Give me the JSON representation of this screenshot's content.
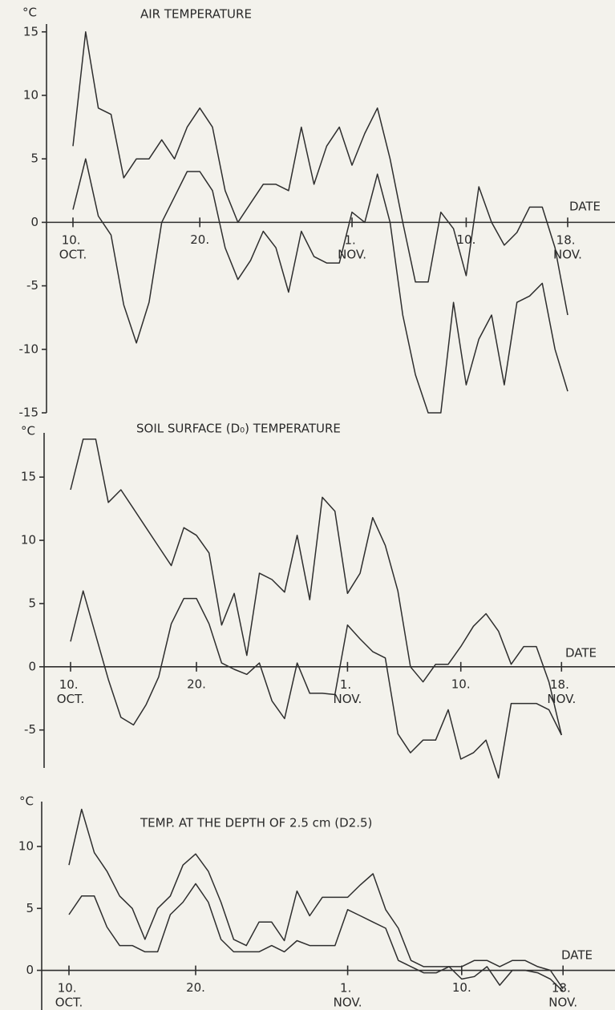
{
  "chart_data": [
    {
      "type": "line",
      "title": "AIR TEMPERATURE",
      "y_label": "°C",
      "x_label": "DATE",
      "categories": [
        "10. OCT.",
        null,
        null,
        null,
        null,
        null,
        null,
        null,
        null,
        null,
        "20.",
        null,
        null,
        null,
        null,
        null,
        null,
        null,
        null,
        null,
        null,
        null,
        "1. NOV.",
        null,
        null,
        null,
        null,
        null,
        null,
        null,
        null,
        "10.",
        null,
        null,
        null,
        null,
        null,
        null,
        null,
        "18. NOV."
      ],
      "series": [
        {
          "color": "#2e2e2e",
          "values": [
            6,
            15,
            9,
            8.5,
            3.5,
            5,
            5,
            6.5,
            5,
            7.5,
            9,
            7.5,
            2.5,
            0,
            1.5,
            3,
            3,
            2.5,
            7.5,
            3,
            6,
            7.5,
            4.5,
            7,
            9,
            5,
            0,
            -4.7,
            -4.7,
            0.8,
            -0.5,
            -4.2,
            2.8,
            0,
            -1.8,
            -0.8,
            1.2,
            1.2,
            -2,
            -7.3
          ]
        },
        {
          "color": "#2e2e2e",
          "values": [
            1,
            5,
            0.5,
            -1,
            -6.5,
            -9.5,
            -6.3,
            0,
            2,
            4,
            4,
            2.5,
            -2,
            -4.5,
            -3,
            -0.7,
            -2,
            -5.5,
            -0.7,
            -2.7,
            -3.2,
            -3.2,
            0.8,
            0,
            3.8,
            0,
            -7.3,
            -12,
            -15,
            -15,
            -6.3,
            -12.8,
            -9.2,
            -7.3,
            -12.8,
            -6.3,
            -5.8,
            -4.8,
            -10,
            -13.3
          ]
        }
      ],
      "ylim": [
        -15,
        15.3
      ],
      "yticks": [
        -15,
        -10,
        -5,
        0,
        5,
        10,
        15
      ]
    },
    {
      "type": "line",
      "title": "SOIL SURFACE (D₀) TEMPERATURE",
      "y_label": "°C",
      "x_label": "DATE",
      "categories": [
        "10. OCT.",
        null,
        null,
        null,
        null,
        null,
        null,
        null,
        null,
        null,
        "20.",
        null,
        null,
        null,
        null,
        null,
        null,
        null,
        null,
        null,
        null,
        null,
        "1. NOV.",
        null,
        null,
        null,
        null,
        null,
        null,
        null,
        null,
        "10.",
        null,
        null,
        null,
        null,
        null,
        null,
        null,
        "18. NOV."
      ],
      "series": [
        {
          "color": "#2e2e2e",
          "values": [
            14,
            18,
            18,
            13,
            14,
            12.5,
            11,
            9.5,
            8,
            11,
            10.4,
            9,
            3.3,
            5.8,
            0.9,
            7.4,
            6.9,
            5.9,
            10.4,
            5.3,
            13.4,
            12.3,
            5.8,
            7.4,
            11.8,
            9.6,
            6,
            0,
            -1.2,
            0.2,
            0.2,
            1.6,
            3.2,
            4.2,
            2.8,
            0.2,
            1.6,
            1.6,
            -1.2,
            -5.4
          ]
        },
        {
          "color": "#2e2e2e",
          "values": [
            2,
            6,
            2.5,
            -1,
            -4,
            -4.6,
            -3,
            -0.8,
            3.4,
            5.4,
            5.4,
            3.4,
            0.3,
            -0.2,
            -0.6,
            0.3,
            -2.7,
            -4.1,
            0.3,
            -2.1,
            -2.1,
            -2.2,
            3.3,
            2.2,
            1.2,
            0.7,
            -5.3,
            -6.8,
            -5.8,
            -5.8,
            -3.4,
            -7.3,
            -6.8,
            -5.8,
            -8.8,
            -2.9,
            -2.9,
            -2.9,
            -3.4,
            -5.4
          ]
        }
      ],
      "ylim": [
        -8,
        18.5
      ],
      "yticks": [
        -5,
        0,
        5,
        10,
        15
      ]
    },
    {
      "type": "line",
      "title": "TEMP. AT THE DEPTH OF 2.5 cm (D2.5)",
      "y_label": "°C",
      "x_label": "DATE",
      "categories": [
        "10. OCT.",
        null,
        null,
        null,
        null,
        null,
        null,
        null,
        null,
        null,
        "20.",
        null,
        null,
        null,
        null,
        null,
        null,
        null,
        null,
        null,
        null,
        null,
        "1. NOV.",
        null,
        null,
        null,
        null,
        null,
        null,
        null,
        null,
        "10.",
        null,
        null,
        null,
        null,
        null,
        null,
        null,
        "18. NOV."
      ],
      "series": [
        {
          "color": "#2e2e2e",
          "values": [
            8.5,
            13,
            9.5,
            8,
            6,
            5,
            2.5,
            5,
            6,
            8.5,
            9.4,
            8,
            5.5,
            2.5,
            2,
            3.9,
            3.9,
            2.4,
            6.4,
            4.4,
            5.9,
            5.9,
            5.9,
            6.9,
            7.8,
            4.9,
            3.4,
            0.8,
            0.3,
            0.3,
            0.3,
            0.3,
            0.8,
            0.8,
            0.3,
            0.8,
            0.8,
            0.3,
            0,
            -1.5
          ]
        },
        {
          "color": "#2e2e2e",
          "values": [
            4.5,
            6,
            6,
            3.5,
            2,
            2,
            1.5,
            1.5,
            4.5,
            5.5,
            7,
            5.5,
            2.5,
            1.5,
            1.5,
            1.5,
            2,
            1.5,
            2.4,
            2,
            2,
            2,
            4.9,
            4.4,
            3.9,
            3.4,
            0.8,
            0.3,
            -0.2,
            -0.2,
            0.3,
            -0.7,
            -0.5,
            0.3,
            -1.2,
            0,
            0,
            -0.2,
            -0.7,
            -1.7
          ]
        }
      ],
      "ylim": [
        -3.2,
        13.3
      ],
      "yticks": [
        0,
        5,
        10
      ]
    }
  ]
}
